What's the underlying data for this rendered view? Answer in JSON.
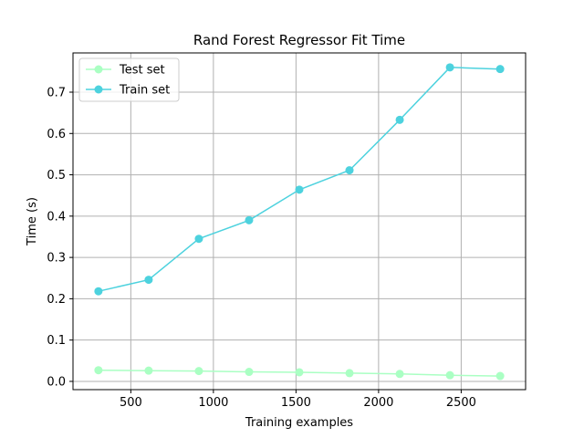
{
  "chart_data": {
    "type": "line",
    "title": "Rand Forest Regressor Fit Time",
    "xlabel": "Training examples",
    "ylabel": "Time (s)",
    "xlim": [
      150,
      2890
    ],
    "ylim": [
      -0.02,
      0.795
    ],
    "xticks": [
      500,
      1000,
      1500,
      2000,
      2500
    ],
    "yticks": [
      0.0,
      0.1,
      0.2,
      0.3,
      0.4,
      0.5,
      0.6,
      0.7
    ],
    "grid": true,
    "legend_position": "upper left",
    "x": [
      304,
      608,
      912,
      1216,
      1520,
      1824,
      2128,
      2432,
      2736
    ],
    "series": [
      {
        "name": "Test set",
        "color": "#aaffc3",
        "values": [
          0.027,
          0.026,
          0.025,
          0.023,
          0.022,
          0.02,
          0.018,
          0.015,
          0.013
        ]
      },
      {
        "name": "Train set",
        "color": "#4dd2de",
        "values": [
          0.218,
          0.246,
          0.345,
          0.39,
          0.464,
          0.511,
          0.633,
          0.76,
          0.756
        ]
      }
    ]
  }
}
